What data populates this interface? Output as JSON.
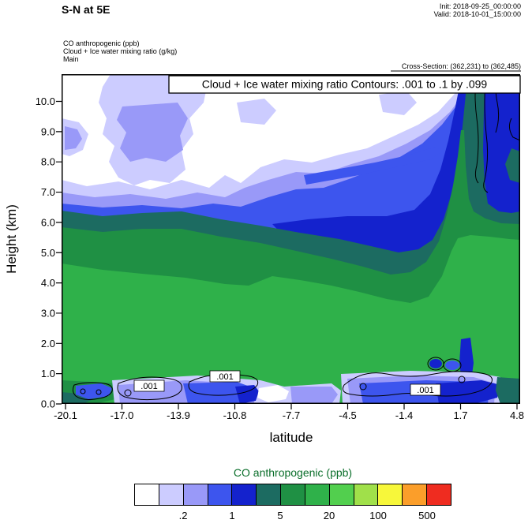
{
  "header": {
    "title": "S-N at 5E",
    "init": "Init: 2018-09-25_00:00:00",
    "valid": "Valid: 2018-10-01_15:00:00",
    "field1": "CO anthropogenic  (ppb)",
    "field2": "Cloud + Ice water mixing ratio  (g/kg)",
    "field3": "Main",
    "cross_section": "Cross-Section: (362,231) to (362,485)"
  },
  "plot": {
    "banner": "Cloud + Ice water mixing ratio Contours: .001 to .1 by .099",
    "xlabel": "latitude",
    "ylabel": "Height (km)",
    "x_ticks": [
      "-20.1",
      "-17.0",
      "-13.9",
      "-10.8",
      "-7.7",
      "-4.5",
      "-1.4",
      "1.7",
      "4.8"
    ],
    "y_ticks": [
      "0.0",
      "1.0",
      "2.0",
      "3.0",
      "4.0",
      "5.0",
      "6.0",
      "7.0",
      "8.0",
      "9.0",
      "10.0"
    ],
    "contour_labels": [
      ".001",
      ".001",
      ".001"
    ]
  },
  "colorbar": {
    "title": "CO anthropogenic  (ppb)",
    "title_color": "#0a6e2a",
    "tick_labels": [
      ".2",
      "1",
      "5",
      "20",
      "100",
      "500"
    ],
    "colors": [
      "#ffffff",
      "#ccccff",
      "#9999f8",
      "#3d55ee",
      "#1422cd",
      "#1c6b61",
      "#1f9044",
      "#2fb14a",
      "#52cf4e",
      "#a0e04a",
      "#f7f73a",
      "#fb9e2a",
      "#ef2c20"
    ]
  },
  "chart_data": {
    "type": "heatmap",
    "title": "S-N at 5E",
    "subtitle": "Vertical cross-section of CO anthropogenic (ppb, color fill) with Cloud + Ice water mixing ratio contours (g/kg, black lines)",
    "xlabel": "latitude",
    "ylabel": "Height (km)",
    "xlim": [
      -20.1,
      4.8
    ],
    "ylim": [
      0,
      10.9
    ],
    "x_ticks": [
      -20.1,
      -17.0,
      -13.9,
      -10.8,
      -7.7,
      -4.5,
      -1.4,
      1.7,
      4.8
    ],
    "y_ticks": [
      0,
      1,
      2,
      3,
      4,
      5,
      6,
      7,
      8,
      9,
      10
    ],
    "fill_levels_ppb": [
      0.1,
      0.2,
      0.5,
      1,
      2,
      5,
      10,
      20,
      50,
      100,
      200,
      500
    ],
    "fill_colors": [
      "#ffffff",
      "#ccccff",
      "#9999f8",
      "#3d55ee",
      "#1422cd",
      "#1c6b61",
      "#1f9044",
      "#2fb14a",
      "#52cf4e",
      "#a0e04a",
      "#f7f73a",
      "#fb9e2a",
      "#ef2c20"
    ],
    "overlay_contours": {
      "variable": "Cloud + Ice water mixing ratio (g/kg)",
      "levels": [
        0.001,
        0.1
      ],
      "label": ".001 to .1 by .099"
    },
    "cross_section_gridpoints": "(362,231) to (362,485)",
    "approx_co_ppb_estimated_from_colors": {
      "heights_km": [
        0.5,
        2,
        4,
        6,
        8,
        10
      ],
      "latitudes": [
        -20,
        -15,
        -10,
        -5,
        0,
        4.8
      ],
      "values": [
        [
          15,
          15,
          12,
          3,
          0.15,
          0.05
        ],
        [
          0.7,
          15,
          12,
          2,
          0.3,
          0.15
        ],
        [
          0.8,
          15,
          12,
          1.5,
          0.4,
          0.05
        ],
        [
          3,
          12,
          12,
          2,
          0.8,
          0.1
        ],
        [
          7,
          12,
          10,
          3,
          1.5,
          1.5
        ],
        [
          12,
          12,
          10,
          5,
          1.5,
          1.5
        ]
      ]
    }
  }
}
